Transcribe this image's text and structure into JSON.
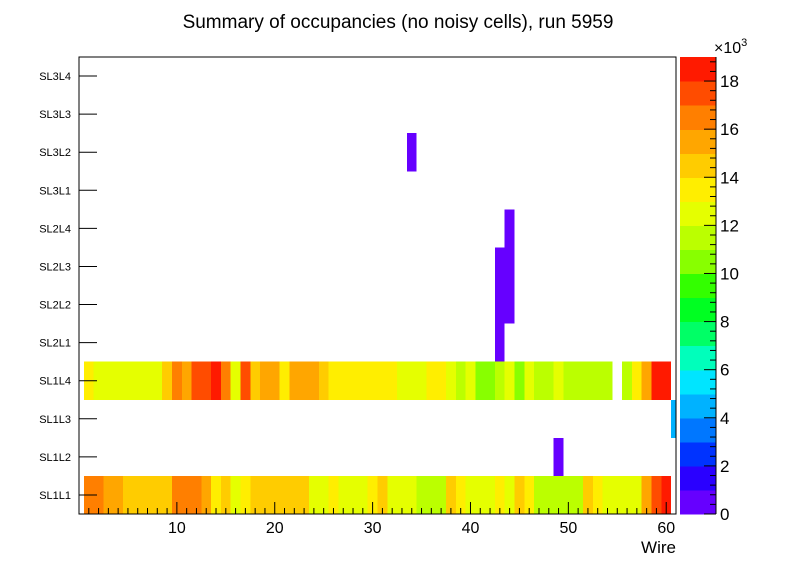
{
  "chart_data": {
    "type": "heatmap",
    "title": "Summary of occupancies (no noisy cells), run 5959",
    "xlabel": "Wire",
    "ylabel": "",
    "xlim": [
      0,
      61
    ],
    "x_ticks": [
      10,
      20,
      30,
      40,
      50,
      60
    ],
    "x_tick_labels": [
      "10",
      "20",
      "30",
      "40",
      "50",
      "60"
    ],
    "y_categories": [
      "SL1L1",
      "SL1L2",
      "SL1L3",
      "SL1L4",
      "SL2L1",
      "SL2L2",
      "SL2L3",
      "SL2L4",
      "SL3L1",
      "SL3L2",
      "SL3L3",
      "SL3L4"
    ],
    "colorbar": {
      "min": 0,
      "max": 19000,
      "ticks": [
        0,
        2000,
        4000,
        6000,
        8000,
        10000,
        12000,
        14000,
        16000,
        18000
      ],
      "tick_labels": [
        "0",
        "2",
        "4",
        "6",
        "8",
        "10",
        "12",
        "14",
        "16",
        "18"
      ],
      "multiplier_label": "×10",
      "multiplier_exponent": "3",
      "palette": [
        "#6600ff",
        "#2a00ff",
        "#0033ff",
        "#0077ff",
        "#00b2ff",
        "#00e5ff",
        "#00ffbb",
        "#00ff66",
        "#00ff22",
        "#33ff00",
        "#88ff00",
        "#bbff00",
        "#e5ff00",
        "#ffee00",
        "#ffcc00",
        "#ffa600",
        "#ff7f00",
        "#ff4c00",
        "#ff1a00"
      ]
    },
    "rows": [
      {
        "label": "SL1L1",
        "values": [
          0,
          16000,
          16000,
          15000,
          15000,
          14000,
          14000,
          14000,
          14000,
          14000,
          16000,
          16000,
          16000,
          15000,
          13000,
          14000,
          12000,
          13000,
          14000,
          14000,
          14000,
          14000,
          14000,
          14000,
          12000,
          12000,
          13000,
          12000,
          12000,
          12000,
          13000,
          14000,
          12000,
          12000,
          12000,
          11000,
          11000,
          11000,
          14000,
          13000,
          12000,
          12000,
          12000,
          13000,
          12000,
          14000,
          13000,
          11000,
          11000,
          11000,
          11000,
          11000,
          14000,
          13000,
          12000,
          12000,
          12000,
          12000,
          15000,
          17000,
          18000
        ]
      },
      {
        "label": "SL1L2",
        "values": [
          0,
          0,
          0,
          0,
          0,
          0,
          0,
          0,
          0,
          0,
          0,
          0,
          0,
          0,
          0,
          0,
          0,
          0,
          0,
          0,
          0,
          0,
          0,
          0,
          0,
          0,
          0,
          0,
          0,
          0,
          0,
          0,
          0,
          0,
          0,
          0,
          0,
          0,
          0,
          0,
          0,
          0,
          0,
          0,
          0,
          0,
          0,
          0,
          0,
          500,
          0,
          0,
          0,
          0,
          0,
          0,
          0,
          0,
          0,
          0,
          0
        ]
      },
      {
        "label": "SL1L3",
        "values": [
          0,
          0,
          0,
          0,
          0,
          0,
          0,
          0,
          0,
          0,
          0,
          0,
          0,
          0,
          0,
          0,
          0,
          0,
          0,
          0,
          0,
          0,
          0,
          0,
          0,
          0,
          0,
          0,
          0,
          0,
          0,
          0,
          0,
          0,
          0,
          0,
          0,
          0,
          0,
          0,
          0,
          0,
          0,
          0,
          0,
          0,
          0,
          0,
          0,
          0,
          0,
          0,
          0,
          0,
          0,
          0,
          0,
          0,
          0,
          0,
          0,
          4500
        ]
      },
      {
        "label": "SL1L4",
        "values": [
          0,
          13000,
          12000,
          12000,
          12000,
          12000,
          12000,
          12000,
          12000,
          14000,
          16000,
          15000,
          17000,
          17000,
          18000,
          16000,
          12000,
          17000,
          14000,
          15000,
          15000,
          13000,
          15000,
          15000,
          15000,
          14000,
          13000,
          13000,
          13000,
          13000,
          13000,
          13000,
          13000,
          12000,
          12000,
          12000,
          13000,
          13000,
          12000,
          11000,
          12000,
          10000,
          10000,
          11000,
          12000,
          10000,
          12000,
          11000,
          11000,
          12000,
          11000,
          11000,
          11000,
          11000,
          11000,
          0,
          11000,
          13000,
          15000,
          18000,
          18000
        ]
      },
      {
        "label": "SL2L1",
        "values": [
          0,
          0,
          0,
          0,
          0,
          0,
          0,
          0,
          0,
          0,
          0,
          0,
          0,
          0,
          0,
          0,
          0,
          0,
          0,
          0,
          0,
          0,
          0,
          0,
          0,
          0,
          0,
          0,
          0,
          0,
          0,
          0,
          0,
          0,
          0,
          0,
          0,
          0,
          0,
          0,
          0,
          0,
          0,
          500,
          0,
          0,
          0,
          0,
          0,
          0,
          0,
          0,
          0,
          0,
          0,
          0,
          0,
          0,
          0,
          0,
          0
        ]
      },
      {
        "label": "SL2L2",
        "values": [
          0,
          0,
          0,
          0,
          0,
          0,
          0,
          0,
          0,
          0,
          0,
          0,
          0,
          0,
          0,
          0,
          0,
          0,
          0,
          0,
          0,
          0,
          0,
          0,
          0,
          0,
          0,
          0,
          0,
          0,
          0,
          0,
          0,
          0,
          0,
          0,
          0,
          0,
          0,
          0,
          0,
          0,
          0,
          500,
          500,
          0,
          0,
          0,
          0,
          0,
          0,
          0,
          0,
          0,
          0,
          0,
          0,
          0,
          0,
          0,
          0
        ]
      },
      {
        "label": "SL2L3",
        "values": [
          0,
          0,
          0,
          0,
          0,
          0,
          0,
          0,
          0,
          0,
          0,
          0,
          0,
          0,
          0,
          0,
          0,
          0,
          0,
          0,
          0,
          0,
          0,
          0,
          0,
          0,
          0,
          0,
          0,
          0,
          0,
          0,
          0,
          0,
          0,
          0,
          0,
          0,
          0,
          0,
          0,
          0,
          0,
          500,
          500,
          0,
          0,
          0,
          0,
          0,
          0,
          0,
          0,
          0,
          0,
          0,
          0,
          0,
          0,
          0,
          0
        ]
      },
      {
        "label": "SL2L4",
        "values": [
          0,
          0,
          0,
          0,
          0,
          0,
          0,
          0,
          0,
          0,
          0,
          0,
          0,
          0,
          0,
          0,
          0,
          0,
          0,
          0,
          0,
          0,
          0,
          0,
          0,
          0,
          0,
          0,
          0,
          0,
          0,
          0,
          0,
          0,
          0,
          0,
          0,
          0,
          0,
          0,
          0,
          0,
          0,
          0,
          500,
          0,
          0,
          0,
          0,
          0,
          0,
          0,
          0,
          0,
          0,
          0,
          0,
          0,
          0,
          0,
          0
        ]
      },
      {
        "label": "SL3L1",
        "values": [
          0,
          0,
          0,
          0,
          0,
          0,
          0,
          0,
          0,
          0,
          0,
          0,
          0,
          0,
          0,
          0,
          0,
          0,
          0,
          0,
          0,
          0,
          0,
          0,
          0,
          0,
          0,
          0,
          0,
          0,
          0,
          0,
          0,
          0,
          0,
          0,
          0,
          0,
          0,
          0,
          0,
          0,
          0,
          0,
          0,
          0,
          0,
          0,
          0,
          0,
          0,
          0,
          0,
          0,
          0,
          0,
          0,
          0,
          0,
          0,
          0
        ]
      },
      {
        "label": "SL3L2",
        "values": [
          0,
          0,
          0,
          0,
          0,
          0,
          0,
          0,
          0,
          0,
          0,
          0,
          0,
          0,
          0,
          0,
          0,
          0,
          0,
          0,
          0,
          0,
          0,
          0,
          0,
          0,
          0,
          0,
          0,
          0,
          0,
          0,
          0,
          0,
          500,
          0,
          0,
          0,
          0,
          0,
          0,
          0,
          0,
          0,
          0,
          0,
          0,
          0,
          0,
          0,
          0,
          0,
          0,
          0,
          0,
          0,
          0,
          0,
          0,
          0,
          0
        ]
      },
      {
        "label": "SL3L3",
        "values": [
          0,
          0,
          0,
          0,
          0,
          0,
          0,
          0,
          0,
          0,
          0,
          0,
          0,
          0,
          0,
          0,
          0,
          0,
          0,
          0,
          0,
          0,
          0,
          0,
          0,
          0,
          0,
          0,
          0,
          0,
          0,
          0,
          0,
          0,
          0,
          0,
          0,
          0,
          0,
          0,
          0,
          0,
          0,
          0,
          0,
          0,
          0,
          0,
          0,
          0,
          0,
          0,
          0,
          0,
          0,
          0,
          0,
          0,
          0,
          0,
          0
        ]
      },
      {
        "label": "SL3L4",
        "values": [
          0,
          0,
          0,
          0,
          0,
          0,
          0,
          0,
          0,
          0,
          0,
          0,
          0,
          0,
          0,
          0,
          0,
          0,
          0,
          0,
          0,
          0,
          0,
          0,
          0,
          0,
          0,
          0,
          0,
          0,
          0,
          0,
          0,
          0,
          0,
          0,
          0,
          0,
          0,
          0,
          0,
          0,
          0,
          0,
          0,
          0,
          0,
          0,
          0,
          0,
          0,
          0,
          0,
          0,
          0,
          0,
          0,
          0,
          0,
          0,
          0
        ]
      }
    ]
  }
}
